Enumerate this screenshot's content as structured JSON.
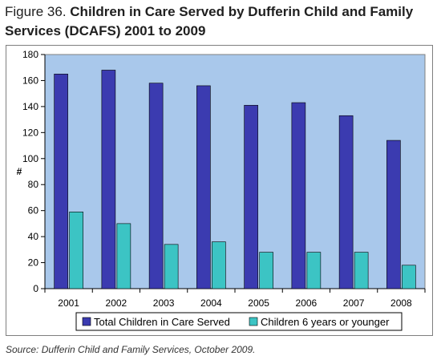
{
  "figure": {
    "prefix": "Figure 36.",
    "title": "Children in Care Served by Dufferin Child and Family Services (DCAFS) 2001 to 2009",
    "source": "Source: Dufferin Child and Family Services, October 2009."
  },
  "chart_data": {
    "type": "bar",
    "categories": [
      "2001",
      "2002",
      "2003",
      "2004",
      "2005",
      "2006",
      "2007",
      "2008"
    ],
    "series": [
      {
        "name": "Total Children in Care Served",
        "values": [
          165,
          168,
          158,
          156,
          141,
          143,
          133,
          114
        ],
        "color": "#3b3bb0"
      },
      {
        "name": "Children 6 years or younger",
        "values": [
          59,
          50,
          34,
          36,
          28,
          28,
          28,
          18
        ],
        "color": "#3cc4c4"
      }
    ],
    "ylabel": "#",
    "xlabel": "",
    "ylim": [
      0,
      180
    ],
    "yticks": [
      0,
      20,
      40,
      60,
      80,
      100,
      120,
      140,
      160,
      180
    ],
    "plot_background": "#a9c8eb",
    "grid": false,
    "legend": "bottom"
  }
}
